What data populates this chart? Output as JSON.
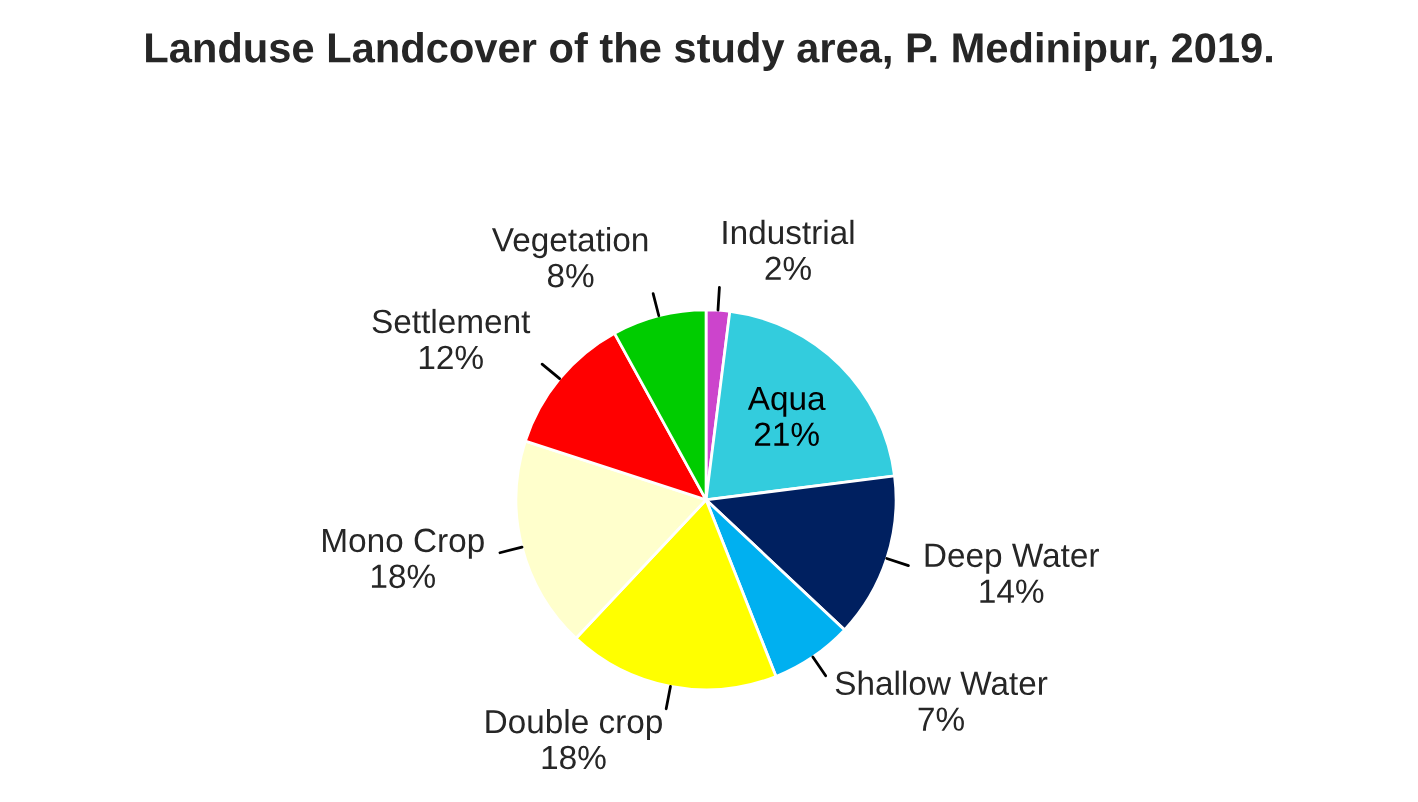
{
  "chart_data": {
    "type": "pie",
    "title": "Landuse Landcover of the study area, P. Medinipur, 2019.",
    "categories": [
      "Industrial",
      "Aqua",
      "Deep Water",
      "Shallow Water",
      "Double crop",
      "Mono Crop",
      "Settlement",
      "Vegetation"
    ],
    "values": [
      2,
      21,
      14,
      7,
      18,
      18,
      12,
      8
    ],
    "value_labels": [
      "2%",
      "21%",
      "14%",
      "7%",
      "18%",
      "18%",
      "12%",
      "8%"
    ],
    "colors": [
      "#cc44cc",
      "#33ccdd",
      "#002060",
      "#00b0f0",
      "#ffff00",
      "#ffffcc",
      "#ff0000",
      "#00cc00"
    ],
    "legend": false
  }
}
